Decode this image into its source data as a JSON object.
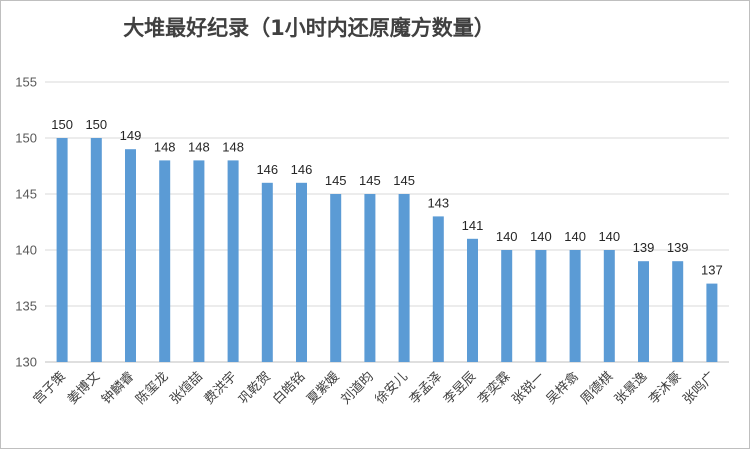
{
  "chart_data": {
    "type": "bar",
    "title": "大堆最好纪录（1小时内还原魔方数量）",
    "xlabel": "",
    "ylabel": "",
    "ylim": [
      130,
      155
    ],
    "yticks": [
      130,
      135,
      140,
      145,
      150,
      155
    ],
    "grid": true,
    "legend": "none",
    "bar_color": "#5b9bd5",
    "categories": [
      "宫子策",
      "姜博文",
      "钟麟睿",
      "陈玺龙",
      "张煊喆",
      "费洪宇",
      "巩乾贺",
      "白皓铭",
      "夏紫媛",
      "刘道昀",
      "徐安儿",
      "李孟泽",
      "李昱辰",
      "李奕霖",
      "张锐一",
      "吴梓翕",
      "周德棋",
      "张景逸",
      "李沐豪",
      "张鸣广"
    ],
    "values": [
      150,
      150,
      149,
      148,
      148,
      148,
      146,
      146,
      145,
      145,
      145,
      143,
      141,
      140,
      140,
      140,
      140,
      139,
      139,
      137
    ]
  }
}
